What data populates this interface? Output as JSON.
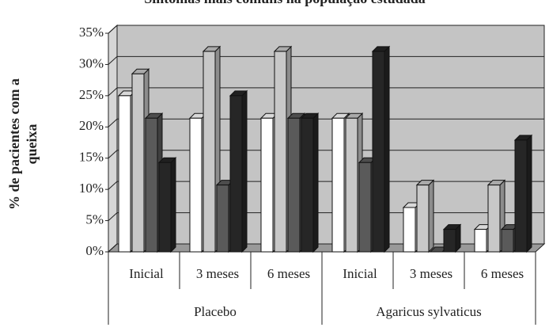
{
  "chart_data": {
    "type": "bar3d",
    "title": "Sintomas mais comuns na população estudada",
    "y_label": [
      "% de pacientes com a",
      "queixa"
    ],
    "categories": [
      "Inicial",
      "3 meses",
      "6 meses",
      "Inicial",
      "3 meses",
      "6 meses"
    ],
    "groups": [
      "Placebo",
      "Agaricus sylvaticus"
    ],
    "series": [
      {
        "color": "#ffffff",
        "values": [
          25,
          21.4,
          21.4,
          21.4,
          7.1,
          3.6
        ]
      },
      {
        "color": "#c8c8c8",
        "values": [
          28.5,
          32.1,
          32.1,
          21.4,
          10.7,
          10.7
        ]
      },
      {
        "color": "#5a5a5a",
        "values": [
          21.4,
          10.7,
          21.4,
          14.3,
          0,
          3.6
        ]
      },
      {
        "color": "#262626",
        "values": [
          14.3,
          25,
          21.4,
          32.1,
          3.6,
          17.9
        ]
      }
    ],
    "ylim": [
      0,
      35
    ],
    "yticks": [
      {
        "value": 0,
        "label": "0%"
      },
      {
        "value": 5,
        "label": "5%"
      },
      {
        "value": 10,
        "label": "10%"
      },
      {
        "value": 15,
        "label": "15%"
      },
      {
        "value": 20,
        "label": "20%"
      },
      {
        "value": 25,
        "label": "25%"
      },
      {
        "value": 30,
        "label": "30%"
      },
      {
        "value": 35,
        "label": "35%"
      }
    ],
    "grid": true
  }
}
